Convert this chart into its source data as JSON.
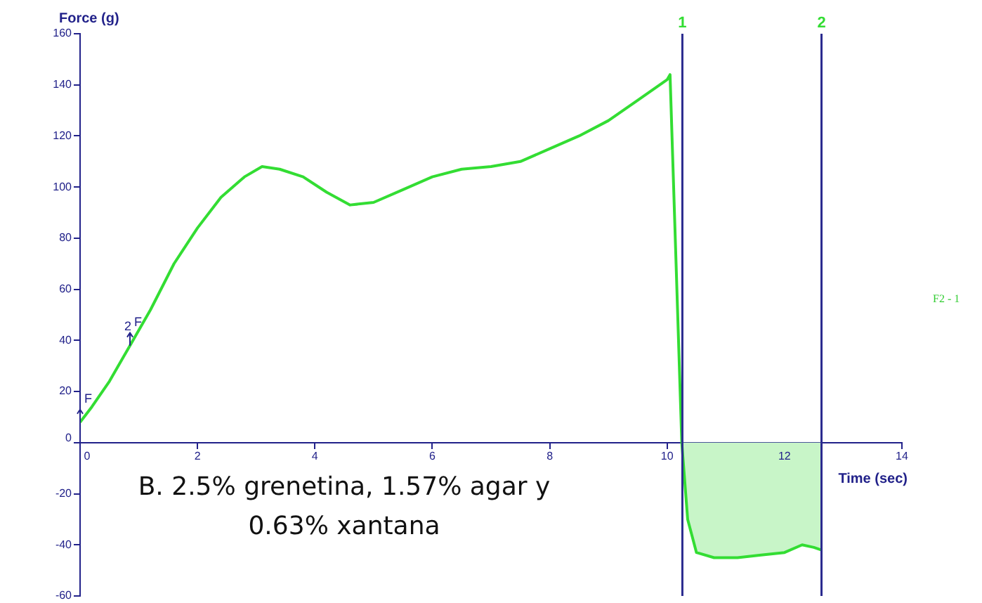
{
  "chart_data": {
    "type": "line",
    "xlabel": "Time (sec)",
    "ylabel": "Force (g)",
    "xlim": [
      0,
      14
    ],
    "xticks": [
      0,
      2,
      4,
      6,
      8,
      10,
      12,
      14
    ],
    "ylim": [
      -60,
      160
    ],
    "yticks": [
      -60,
      -40,
      -20,
      0,
      20,
      40,
      60,
      80,
      100,
      120,
      140,
      160
    ],
    "grid": false,
    "legend": false,
    "marker": "none",
    "line_style": "solid",
    "series": [
      {
        "color": "#33dd33",
        "x": [
          0,
          0.2,
          0.5,
          0.85,
          1.2,
          1.6,
          2.0,
          2.4,
          2.8,
          3.1,
          3.4,
          3.8,
          4.2,
          4.6,
          5.0,
          5.5,
          6.0,
          6.5,
          7.0,
          7.5,
          8.0,
          8.5,
          9.0,
          9.5,
          10.0,
          10.05,
          10.25,
          10.35,
          10.5,
          10.8,
          11.2,
          11.6,
          12.0,
          12.3,
          12.5,
          12.63
        ],
        "values": [
          8,
          14,
          24,
          38,
          52,
          70,
          84,
          96,
          104,
          108,
          107,
          104,
          98,
          93,
          94,
          99,
          104,
          107,
          108,
          110,
          115,
          120,
          126,
          134,
          142,
          144,
          0,
          -30,
          -43,
          -45,
          -45,
          -44,
          -43,
          -40,
          -41,
          -42
        ]
      },
      {
        "type": "area",
        "color": "#c8f5c8",
        "x": [
          10.26,
          10.35,
          10.5,
          10.8,
          11.2,
          11.6,
          12.0,
          12.3,
          12.5,
          12.63
        ],
        "values": [
          0,
          -30,
          -43,
          -45,
          -45,
          -44,
          -43,
          -40,
          -41,
          -42
        ]
      }
    ],
    "ref_lines": [
      {
        "axis": "x",
        "value": 10.26,
        "color": "#2b2b8f"
      },
      {
        "axis": "x",
        "value": 12.63,
        "color": "#2b2b8f"
      }
    ],
    "annotations": [
      "B. 2.5% grenetina, 1.57% agar y 0.63% xantana",
      "F2 - 1",
      {
        "text": "1",
        "x": 10.26,
        "y": 160
      },
      {
        "text": "2",
        "x": 12.63,
        "y": 160
      },
      {
        "text": "F",
        "x": 0,
        "y": 8
      },
      {
        "text": "2",
        "x": 0.85,
        "y": 38
      },
      {
        "text": "F",
        "x": 0.85,
        "y": 38
      }
    ]
  }
}
